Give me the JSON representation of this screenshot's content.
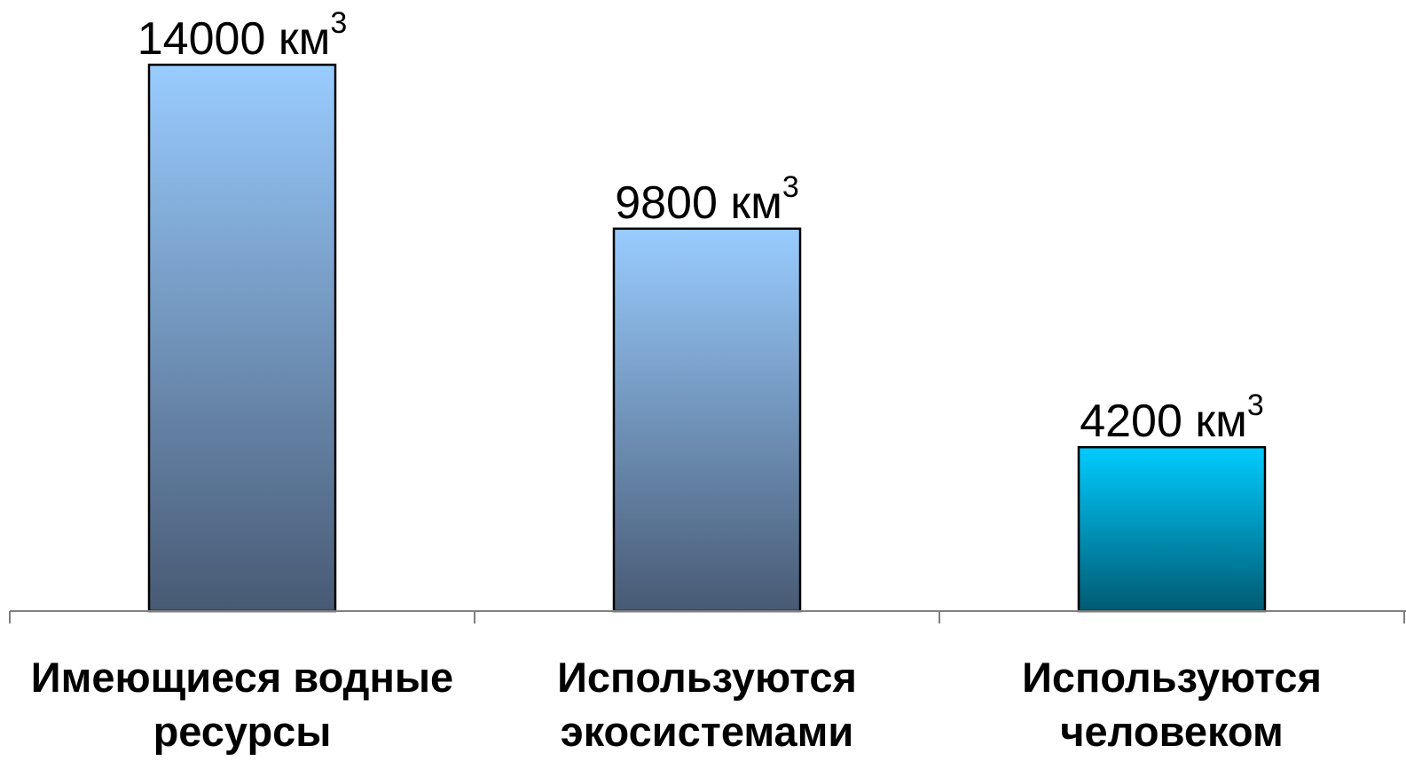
{
  "chart_data": {
    "type": "bar",
    "categories": [
      "Имеющиеся водные ресурсы",
      "Используются экосистемами",
      "Используются человеком"
    ],
    "category_lines": [
      [
        "Имеющиеся водные",
        "ресурсы"
      ],
      [
        "Используются",
        "экосистемами"
      ],
      [
        "Используются",
        "человеком"
      ]
    ],
    "values": [
      14000,
      9800,
      4200
    ],
    "data_labels": [
      {
        "number": "14000 км",
        "sup": "3"
      },
      {
        "number": "9800 км",
        "sup": "3"
      },
      {
        "number": "4200 км",
        "sup": "3"
      }
    ],
    "unit": "км³",
    "title": "",
    "xlabel": "",
    "ylabel": "",
    "ylim": [
      0,
      14000
    ],
    "grid": false,
    "legend": "none",
    "colors": {
      "bar1_top": "#99ccff",
      "bar1_bottom": "#485a74",
      "bar2_top": "#99ccff",
      "bar2_bottom": "#485a74",
      "bar3_top": "#00ccff",
      "bar3_bottom": "#005a72",
      "bar_stroke": "#000000",
      "axis": "#7f7f7f"
    }
  }
}
